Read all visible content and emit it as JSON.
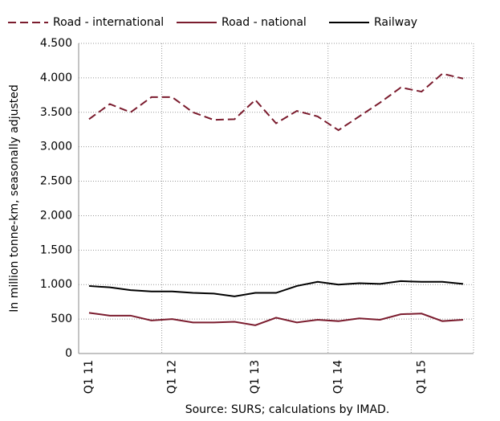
{
  "chart_data": {
    "type": "line",
    "y_label": "In million tonne-km, seasonally adjusted",
    "source": "Source: SURS; calculations by IMAD.",
    "categories": [
      "Q1 11",
      null,
      null,
      null,
      "Q1 12",
      null,
      null,
      null,
      "Q1 13",
      null,
      null,
      null,
      "Q1 14",
      null,
      null,
      null,
      "Q1 15",
      null,
      null
    ],
    "series": [
      {
        "name": "Road - international",
        "color": "#7b1c2e",
        "dash": true,
        "values": [
          3400,
          3620,
          3500,
          3720,
          3720,
          3500,
          3390,
          3400,
          3680,
          3340,
          3520,
          3440,
          3240,
          3440,
          3640,
          3860,
          3800,
          4060,
          3990
        ]
      },
      {
        "name": "Road - national",
        "color": "#7b1c2e",
        "dash": false,
        "values": [
          590,
          550,
          550,
          480,
          500,
          450,
          450,
          460,
          410,
          520,
          450,
          490,
          470,
          510,
          490,
          570,
          580,
          470,
          490
        ]
      },
      {
        "name": "Railway",
        "color": "#000000",
        "dash": false,
        "values": [
          980,
          960,
          920,
          900,
          900,
          880,
          870,
          830,
          880,
          880,
          980,
          1040,
          1000,
          1020,
          1010,
          1050,
          1040,
          1040,
          1010
        ]
      }
    ],
    "ylim": [
      0,
      4500
    ],
    "yticks": [
      0,
      {
        "value": 500,
        "label": "500"
      },
      {
        "value": 1000,
        "label": "1.000"
      },
      {
        "value": 1500,
        "label": "1.500"
      },
      {
        "value": 2000,
        "label": "2.000"
      },
      {
        "value": 2500,
        "label": "2.500"
      },
      {
        "value": 3000,
        "label": "3.000"
      },
      {
        "value": 3500,
        "label": "3.500"
      },
      {
        "value": 4000,
        "label": "4.000"
      },
      {
        "value": 4500,
        "label": "4.500"
      }
    ],
    "grid": true
  }
}
